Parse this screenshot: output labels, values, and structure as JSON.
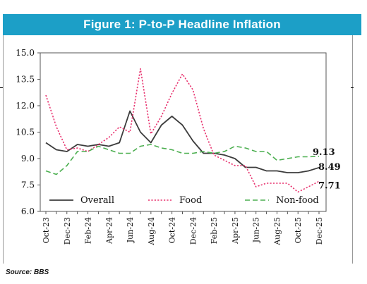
{
  "title": "Figure 1: P-to-P Headline Inflation",
  "source": "Source: BBS",
  "chart_data": {
    "type": "line",
    "title": "Figure 1: P-to-P Headline Inflation",
    "ylim": [
      6.0,
      15.0
    ],
    "yticks": [
      "6.0",
      "7.5",
      "9.0",
      "10.5",
      "12.0",
      "13.5",
      "15.0"
    ],
    "x": [
      "Oct-23",
      "Nov-23",
      "Dec-23",
      "Jan-24",
      "Feb-24",
      "Mar-24",
      "Apr-24",
      "May-24",
      "Jun-24",
      "Jul-24",
      "Aug-24",
      "Sep-24",
      "Oct-24",
      "Nov-24",
      "Dec-24",
      "Jan-25",
      "Feb-25",
      "Mar-25",
      "Apr-25",
      "May-25",
      "Jun-25",
      "Jul-25",
      "Aug-25",
      "Sep-25",
      "Oct-25",
      "Nov-25",
      "Dec-25"
    ],
    "x_tick_labels": [
      "Oct-23",
      "Dec-23",
      "Feb-24",
      "Apr-24",
      "Jun-24",
      "Aug-24",
      "Oct-24",
      "Dec-24",
      "Feb-25",
      "Apr-25",
      "Jun-25",
      "Aug-25",
      "Oct-25",
      "Dec-25"
    ],
    "grid": false,
    "legend": "bottom",
    "series": [
      {
        "name": "Overall",
        "color": "#3c3c3c",
        "style": "solid",
        "values": [
          9.9,
          9.5,
          9.4,
          9.8,
          9.7,
          9.8,
          9.7,
          9.9,
          11.7,
          10.5,
          9.9,
          10.9,
          11.4,
          10.9,
          10.0,
          9.3,
          9.3,
          9.2,
          9.0,
          8.5,
          8.5,
          8.3,
          8.3,
          8.2,
          8.2,
          8.3,
          8.49
        ]
      },
      {
        "name": "Food",
        "color": "#e8336f",
        "style": "dotted",
        "values": [
          12.6,
          10.8,
          9.5,
          9.6,
          9.4,
          9.8,
          10.2,
          10.8,
          10.5,
          14.1,
          10.4,
          11.4,
          12.7,
          13.8,
          12.9,
          10.7,
          9.2,
          8.9,
          8.6,
          8.6,
          7.4,
          7.6,
          7.6,
          7.6,
          7.1,
          7.4,
          7.71
        ]
      },
      {
        "name": "Non-food",
        "color": "#4caf50",
        "style": "dashed",
        "values": [
          8.3,
          8.1,
          8.6,
          9.4,
          9.4,
          9.7,
          9.5,
          9.3,
          9.3,
          9.7,
          9.8,
          9.6,
          9.5,
          9.3,
          9.3,
          9.4,
          9.3,
          9.4,
          9.7,
          9.6,
          9.4,
          9.4,
          8.9,
          9.0,
          9.1,
          9.1,
          9.13
        ]
      }
    ],
    "end_labels": {
      "non_food": "9.13",
      "overall": "8.49",
      "food": "7.71"
    },
    "legend_entries": [
      "Overall",
      "Food",
      "Non-food"
    ]
  }
}
